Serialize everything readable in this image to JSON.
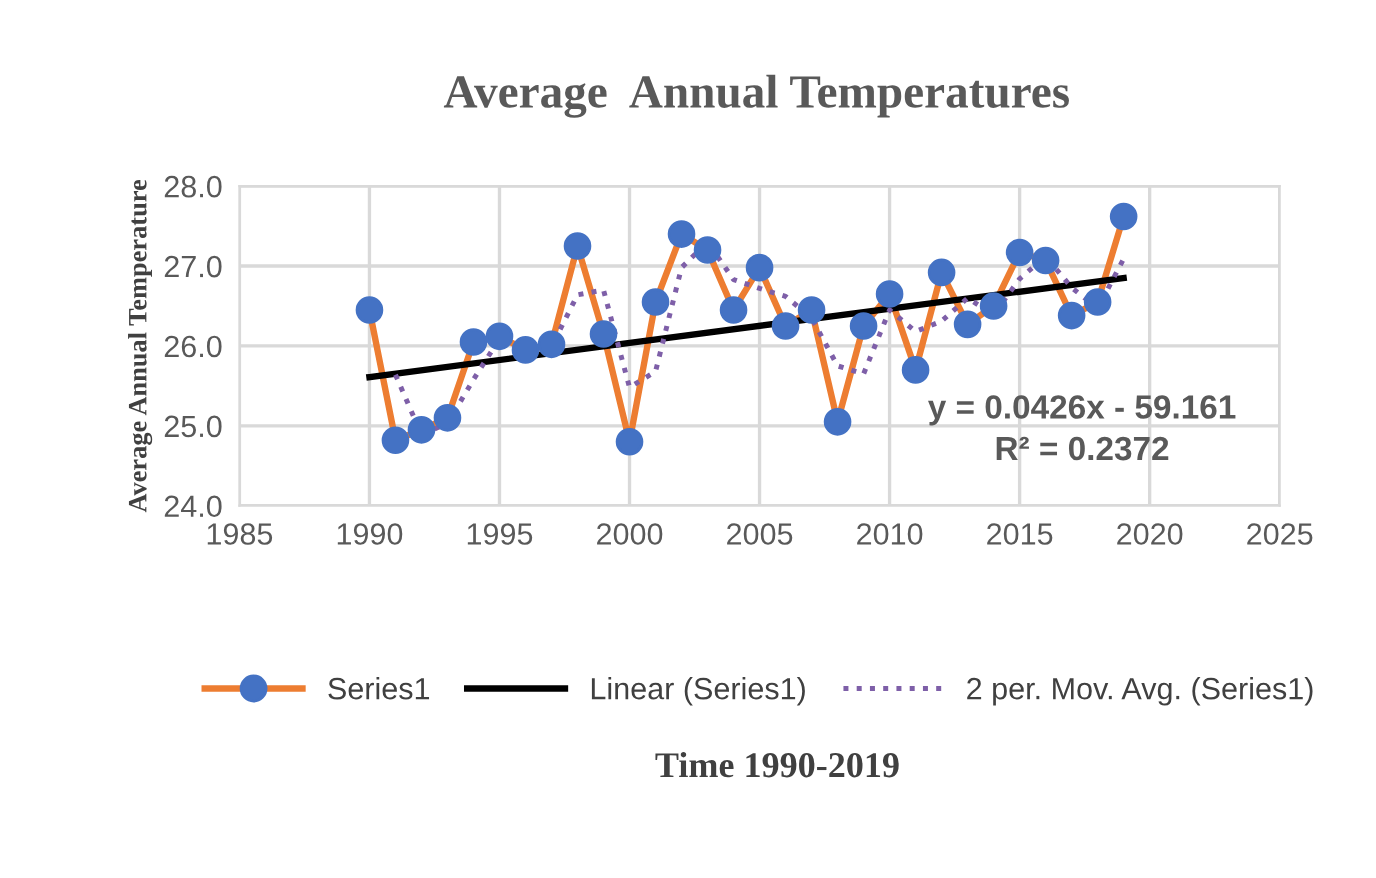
{
  "chart_data": {
    "type": "line",
    "title": "Average  Annual Temperatures",
    "ylabel": "Average Annual Temperature",
    "xlim": [
      1985,
      2025
    ],
    "xticks": [
      1985,
      1990,
      1995,
      2000,
      2005,
      2010,
      2015,
      2020,
      2025
    ],
    "ylim": [
      24,
      28
    ],
    "yticks": [
      {
        "value": 24,
        "label": "24.0"
      },
      {
        "value": 25,
        "label": "25.0"
      },
      {
        "value": 26,
        "label": "26.0"
      },
      {
        "value": 27,
        "label": "27.0"
      },
      {
        "value": 28,
        "label": "28.0"
      }
    ],
    "grid": true,
    "legend": "bottom",
    "annotations": [
      "y = 0.0426x - 59.161",
      "R² = 0.2372",
      "Time 1990-2019"
    ],
    "series": [
      {
        "name": "Series1",
        "color": "#ed7d31",
        "marker": "circle",
        "line_style": "solid",
        "colors": [
          "#4472c4",
          "#4472c4",
          "#4472c4",
          "#4472c4",
          "#4472c4",
          "#4472c4",
          "#4472c4",
          "#4472c4",
          "#4472c4",
          "#4472c4",
          "#4472c4",
          "#4472c4",
          "#4472c4",
          "#4472c4",
          "#4472c4",
          "#4472c4",
          "#4472c4",
          "#4472c4",
          "#4472c4",
          "#4472c4",
          "#4472c4",
          "#4472c4",
          "#4472c4",
          "#4472c4",
          "#4472c4",
          "#4472c4",
          "#4472c4",
          "#4472c4",
          "#4472c4",
          "#4472c4"
        ],
        "x": [
          1990,
          1991,
          1992,
          1993,
          1994,
          1995,
          1996,
          1997,
          1998,
          1999,
          2000,
          2001,
          2002,
          2003,
          2004,
          2005,
          2006,
          2007,
          2008,
          2009,
          2010,
          2011,
          2012,
          2013,
          2014,
          2015,
          2016,
          2017,
          2018,
          2019
        ],
        "values": [
          26.45,
          24.82,
          24.95,
          25.1,
          26.05,
          26.12,
          25.95,
          26.02,
          27.25,
          26.15,
          24.8,
          26.55,
          27.4,
          27.2,
          26.45,
          26.98,
          26.25,
          26.45,
          25.05,
          26.25,
          26.65,
          25.7,
          26.92,
          26.27,
          26.5,
          27.17,
          27.07,
          26.38,
          26.55,
          27.62
        ]
      },
      {
        "name": "Linear (Series1)",
        "color": "#000000",
        "marker": "none",
        "line_style": "solid",
        "x": [
          1990,
          2019
        ],
        "values": [
          25.61,
          26.85
        ]
      },
      {
        "name": "2 per. Mov. Avg. (Series1)",
        "color": "#7e5fa8",
        "marker": "none",
        "line_style": "dotted",
        "x": [
          1991,
          1992,
          1993,
          1994,
          1995,
          1996,
          1997,
          1998,
          1999,
          2000,
          2001,
          2002,
          2003,
          2004,
          2005,
          2006,
          2007,
          2008,
          2009,
          2010,
          2011,
          2012,
          2013,
          2014,
          2015,
          2016,
          2017,
          2018,
          2019
        ],
        "values": [
          25.64,
          24.89,
          25.03,
          25.58,
          26.09,
          26.04,
          25.99,
          26.64,
          26.7,
          25.48,
          25.68,
          26.98,
          27.3,
          26.83,
          26.72,
          26.62,
          26.35,
          25.75,
          25.65,
          26.45,
          26.18,
          26.31,
          26.6,
          26.39,
          26.84,
          27.12,
          26.73,
          26.47,
          27.09
        ]
      }
    ]
  }
}
